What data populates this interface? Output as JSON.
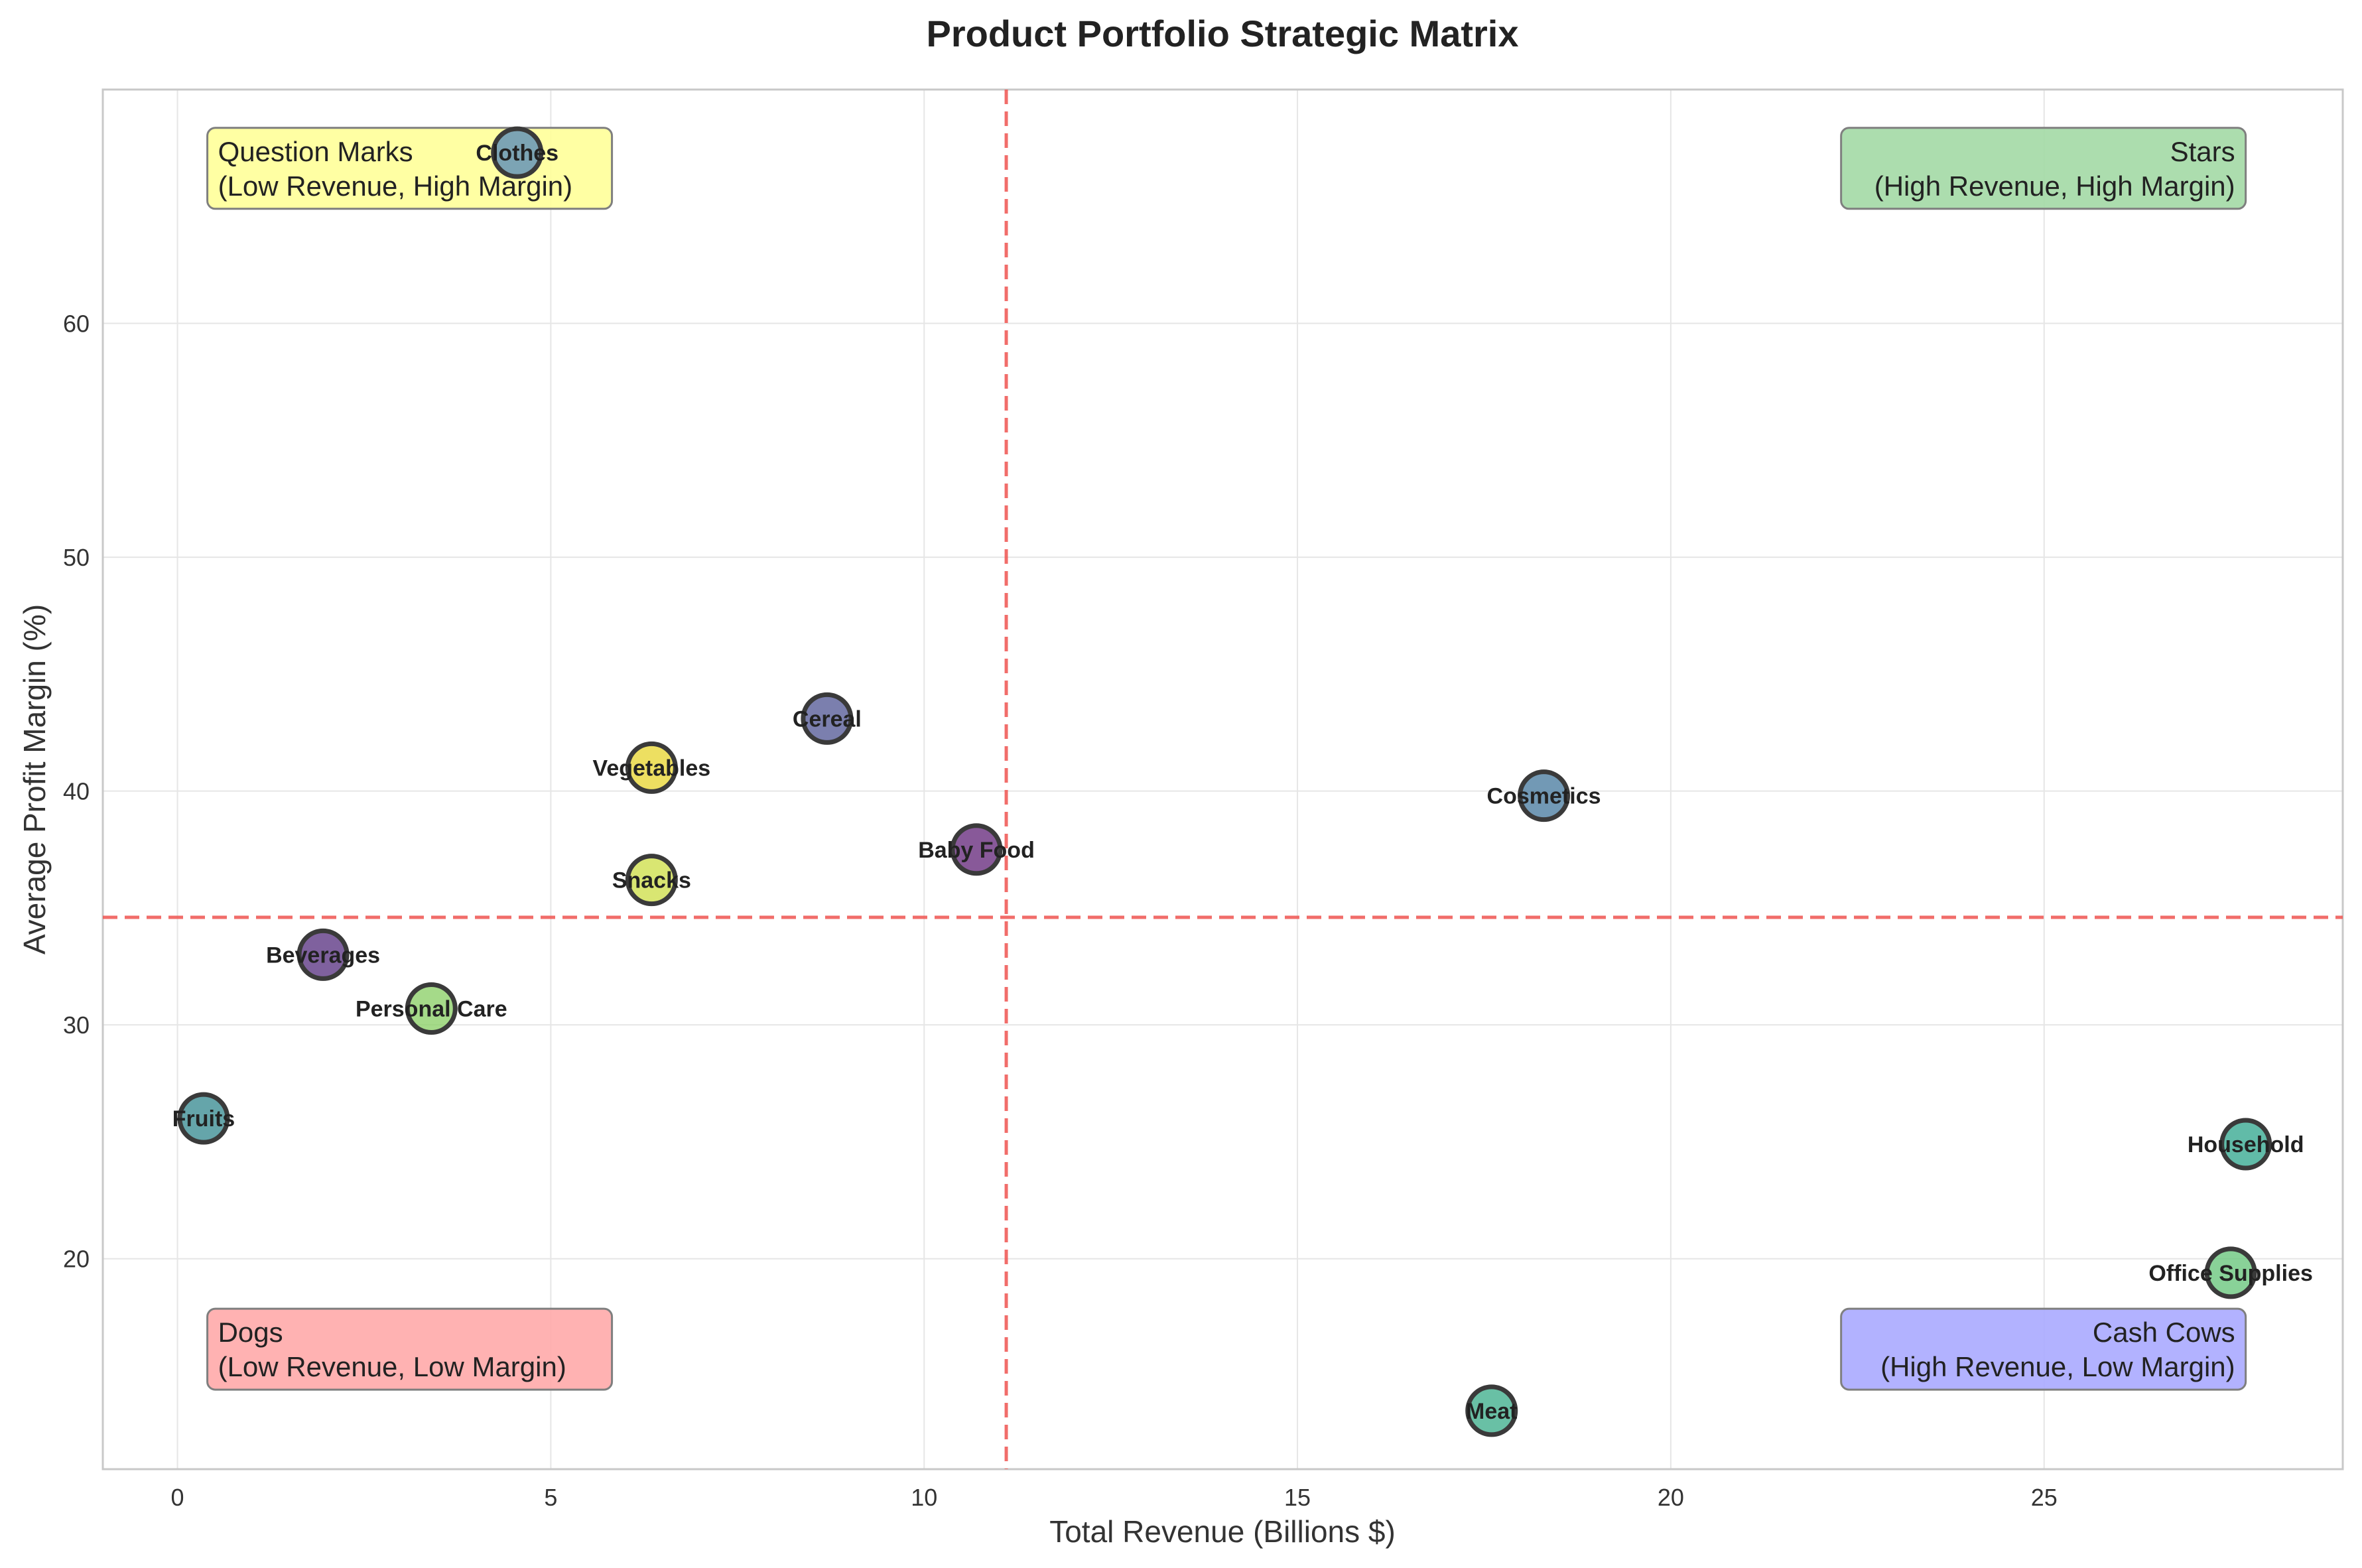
{
  "chart_data": {
    "type": "scatter",
    "title": "Product Portfolio Strategic Matrix",
    "xlabel": "Total Revenue (Billions $)",
    "ylabel": "Average Profit Margin (%)",
    "xlim": [
      -1,
      29
    ],
    "ylim": [
      11,
      70
    ],
    "xticks": [
      0,
      5,
      10,
      15,
      20,
      25
    ],
    "yticks": [
      20,
      30,
      40,
      50,
      60
    ],
    "grid": true,
    "reference_lines": {
      "x": 11.1,
      "y": 34.6,
      "style": "dashed",
      "color": "#ef5350"
    },
    "quadrants": [
      {
        "line1": "Question Marks",
        "line2": "(Low Revenue, High Margin)",
        "color": "#ffff99",
        "position": "top-left"
      },
      {
        "line1": "Stars",
        "line2": "(High Revenue, High Margin)",
        "color": "#a3d9a5",
        "position": "top-right"
      },
      {
        "line1": "Dogs",
        "line2": "(Low Revenue, Low Margin)",
        "color": "#ffaaaa",
        "position": "bottom-left"
      },
      {
        "line1": "Cash Cows",
        "line2": "(High Revenue, Low Margin)",
        "color": "#aaaaff",
        "position": "bottom-right"
      }
    ],
    "points": [
      {
        "label": "Clothes",
        "x": 4.55,
        "y": 67.3,
        "color": "#5b8db8"
      },
      {
        "label": "Cereal",
        "x": 8.7,
        "y": 43.1,
        "color": "#5a5f9a"
      },
      {
        "label": "Vegetables",
        "x": 6.35,
        "y": 41.0,
        "color": "#e8d73a"
      },
      {
        "label": "Baby Food",
        "x": 10.7,
        "y": 37.5,
        "color": "#6a2f7f"
      },
      {
        "label": "Snacks",
        "x": 6.35,
        "y": 36.2,
        "color": "#cfe04f"
      },
      {
        "label": "Cosmetics",
        "x": 18.3,
        "y": 39.8,
        "color": "#4f7fa3"
      },
      {
        "label": "Beverages",
        "x": 1.95,
        "y": 33.0,
        "color": "#5f3a86"
      },
      {
        "label": "Personal Care",
        "x": 3.4,
        "y": 30.7,
        "color": "#8fd16b"
      },
      {
        "label": "Fruits",
        "x": 0.35,
        "y": 26.0,
        "color": "#3e8e95"
      },
      {
        "label": "Household",
        "x": 27.7,
        "y": 24.9,
        "color": "#3aaa92"
      },
      {
        "label": "Office Supplies",
        "x": 27.5,
        "y": 19.4,
        "color": "#6cc77e"
      },
      {
        "label": "Meat",
        "x": 17.6,
        "y": 13.5,
        "color": "#43b08f"
      }
    ]
  }
}
